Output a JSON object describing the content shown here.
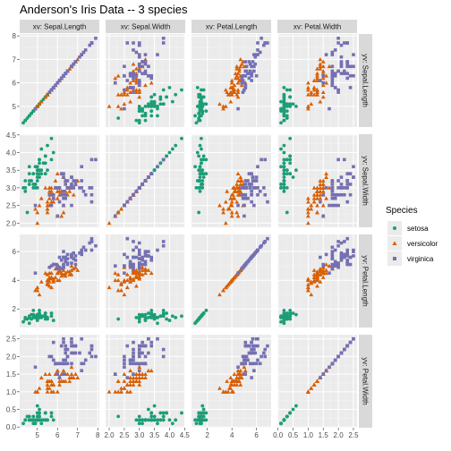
{
  "chart_data": {
    "type": "scatter",
    "title": "Anderson's Iris Data -- 3 species",
    "layout": "scatterplot-matrix",
    "grid": true,
    "variables": [
      "Sepal.Length",
      "Sepal.Width",
      "Petal.Length",
      "Petal.Width"
    ],
    "col_strips": [
      "xv: Sepal.Length",
      "xv: Sepal.Width",
      "xv: Petal.Length",
      "xv: Petal.Width"
    ],
    "row_strips": [
      "yv: Sepal.Length",
      "yv: Sepal.Width",
      "yv: Petal.Length",
      "yv: Petal.Width"
    ],
    "ranges": {
      "Sepal.Length": [
        4.3,
        7.9
      ],
      "Sepal.Width": [
        2.0,
        4.4
      ],
      "Petal.Length": [
        1.0,
        6.9
      ],
      "Petal.Width": [
        0.1,
        2.5
      ]
    },
    "ticks": {
      "Sepal.Length": [
        5,
        6,
        7,
        8
      ],
      "Sepal.Width": [
        2.0,
        2.5,
        3.0,
        3.5,
        4.0,
        4.5
      ],
      "Petal.Length": [
        2,
        4,
        6
      ],
      "Petal.Width": [
        0.0,
        0.5,
        1.0,
        1.5,
        2.0,
        2.5
      ]
    },
    "tick_labels": {
      "Sepal.Length": [
        "5",
        "6",
        "7",
        "8"
      ],
      "Sepal.Width": [
        "2.0",
        "2.5",
        "3.0",
        "3.5",
        "4.0",
        "4.5"
      ],
      "Petal.Length": [
        "2",
        "4",
        "6"
      ],
      "Petal.Width": [
        "0.0",
        "0.5",
        "1.0",
        "1.5",
        "2.0",
        "2.5"
      ]
    },
    "legend": {
      "title": "Species",
      "position": "right"
    },
    "series": [
      {
        "name": "setosa",
        "shape": "circle",
        "color": "#1B9E77",
        "points": [
          [
            5.1,
            3.5,
            1.4,
            0.2
          ],
          [
            4.9,
            3.0,
            1.4,
            0.2
          ],
          [
            4.7,
            3.2,
            1.3,
            0.2
          ],
          [
            4.6,
            3.1,
            1.5,
            0.2
          ],
          [
            5.0,
            3.6,
            1.4,
            0.2
          ],
          [
            5.4,
            3.9,
            1.7,
            0.4
          ],
          [
            4.6,
            3.4,
            1.4,
            0.3
          ],
          [
            5.0,
            3.4,
            1.5,
            0.2
          ],
          [
            4.4,
            2.9,
            1.4,
            0.2
          ],
          [
            4.9,
            3.1,
            1.5,
            0.1
          ],
          [
            5.4,
            3.7,
            1.5,
            0.2
          ],
          [
            4.8,
            3.4,
            1.6,
            0.2
          ],
          [
            4.8,
            3.0,
            1.4,
            0.1
          ],
          [
            4.3,
            3.0,
            1.1,
            0.1
          ],
          [
            5.8,
            4.0,
            1.2,
            0.2
          ],
          [
            5.7,
            4.4,
            1.5,
            0.4
          ],
          [
            5.4,
            3.9,
            1.3,
            0.4
          ],
          [
            5.1,
            3.5,
            1.4,
            0.3
          ],
          [
            5.7,
            3.8,
            1.7,
            0.3
          ],
          [
            5.1,
            3.8,
            1.5,
            0.3
          ],
          [
            5.4,
            3.4,
            1.7,
            0.2
          ],
          [
            5.1,
            3.7,
            1.5,
            0.4
          ],
          [
            4.6,
            3.6,
            1.0,
            0.2
          ],
          [
            5.1,
            3.3,
            1.7,
            0.5
          ],
          [
            4.8,
            3.4,
            1.9,
            0.2
          ],
          [
            5.0,
            3.0,
            1.6,
            0.2
          ],
          [
            5.0,
            3.4,
            1.6,
            0.4
          ],
          [
            5.2,
            3.5,
            1.5,
            0.2
          ],
          [
            5.2,
            3.4,
            1.4,
            0.2
          ],
          [
            4.7,
            3.2,
            1.6,
            0.2
          ],
          [
            4.8,
            3.1,
            1.6,
            0.2
          ],
          [
            5.4,
            3.4,
            1.5,
            0.4
          ],
          [
            5.2,
            4.1,
            1.5,
            0.1
          ],
          [
            5.5,
            4.2,
            1.4,
            0.2
          ],
          [
            4.9,
            3.1,
            1.5,
            0.2
          ],
          [
            5.0,
            3.2,
            1.2,
            0.2
          ],
          [
            5.5,
            3.5,
            1.3,
            0.2
          ],
          [
            4.9,
            3.6,
            1.4,
            0.1
          ],
          [
            4.4,
            3.0,
            1.3,
            0.2
          ],
          [
            5.1,
            3.4,
            1.5,
            0.2
          ],
          [
            5.0,
            3.5,
            1.3,
            0.3
          ],
          [
            4.5,
            2.3,
            1.3,
            0.3
          ],
          [
            4.4,
            3.2,
            1.3,
            0.2
          ],
          [
            5.0,
            3.5,
            1.6,
            0.6
          ],
          [
            5.1,
            3.8,
            1.9,
            0.4
          ],
          [
            4.8,
            3.0,
            1.4,
            0.3
          ],
          [
            5.1,
            3.8,
            1.6,
            0.2
          ],
          [
            4.6,
            3.2,
            1.4,
            0.2
          ],
          [
            5.3,
            3.7,
            1.5,
            0.2
          ],
          [
            5.0,
            3.3,
            1.4,
            0.2
          ]
        ]
      },
      {
        "name": "versicolor",
        "shape": "triangle",
        "color": "#D95F02",
        "points": [
          [
            7.0,
            3.2,
            4.7,
            1.4
          ],
          [
            6.4,
            3.2,
            4.5,
            1.5
          ],
          [
            6.9,
            3.1,
            4.9,
            1.5
          ],
          [
            5.5,
            2.3,
            4.0,
            1.3
          ],
          [
            6.5,
            2.8,
            4.6,
            1.5
          ],
          [
            5.7,
            2.8,
            4.5,
            1.3
          ],
          [
            6.3,
            3.3,
            4.7,
            1.6
          ],
          [
            4.9,
            2.4,
            3.3,
            1.0
          ],
          [
            6.6,
            2.9,
            4.6,
            1.3
          ],
          [
            5.2,
            2.7,
            3.9,
            1.4
          ],
          [
            5.0,
            2.0,
            3.5,
            1.0
          ],
          [
            5.9,
            3.0,
            4.2,
            1.5
          ],
          [
            6.0,
            2.2,
            4.0,
            1.0
          ],
          [
            6.1,
            2.9,
            4.7,
            1.4
          ],
          [
            5.6,
            2.9,
            3.6,
            1.3
          ],
          [
            6.7,
            3.1,
            4.4,
            1.4
          ],
          [
            5.6,
            3.0,
            4.5,
            1.5
          ],
          [
            5.8,
            2.7,
            4.1,
            1.0
          ],
          [
            6.2,
            2.2,
            4.5,
            1.5
          ],
          [
            5.6,
            2.5,
            3.9,
            1.1
          ],
          [
            5.9,
            3.2,
            4.8,
            1.8
          ],
          [
            6.1,
            2.8,
            4.0,
            1.3
          ],
          [
            6.3,
            2.5,
            4.9,
            1.5
          ],
          [
            6.1,
            2.8,
            4.7,
            1.2
          ],
          [
            6.4,
            2.9,
            4.3,
            1.3
          ],
          [
            6.6,
            3.0,
            4.4,
            1.4
          ],
          [
            6.8,
            2.8,
            4.8,
            1.4
          ],
          [
            6.7,
            3.0,
            5.0,
            1.7
          ],
          [
            6.0,
            2.9,
            4.5,
            1.5
          ],
          [
            5.7,
            2.6,
            3.5,
            1.0
          ],
          [
            5.5,
            2.4,
            3.8,
            1.1
          ],
          [
            5.5,
            2.4,
            3.7,
            1.0
          ],
          [
            5.8,
            2.7,
            3.9,
            1.2
          ],
          [
            6.0,
            2.7,
            5.1,
            1.6
          ],
          [
            5.4,
            3.0,
            4.5,
            1.5
          ],
          [
            6.0,
            3.4,
            4.5,
            1.6
          ],
          [
            6.7,
            3.1,
            4.7,
            1.5
          ],
          [
            6.3,
            2.3,
            4.4,
            1.3
          ],
          [
            5.6,
            3.0,
            4.1,
            1.3
          ],
          [
            5.5,
            2.5,
            4.0,
            1.3
          ],
          [
            5.5,
            2.6,
            4.4,
            1.2
          ],
          [
            6.1,
            3.0,
            4.6,
            1.4
          ],
          [
            5.8,
            2.6,
            4.0,
            1.2
          ],
          [
            5.0,
            2.3,
            3.3,
            1.0
          ],
          [
            5.6,
            2.7,
            4.2,
            1.3
          ],
          [
            5.7,
            3.0,
            4.2,
            1.2
          ],
          [
            5.7,
            2.9,
            4.2,
            1.3
          ],
          [
            6.2,
            2.9,
            4.3,
            1.3
          ],
          [
            5.1,
            2.5,
            3.0,
            1.1
          ],
          [
            5.7,
            2.8,
            4.1,
            1.3
          ]
        ]
      },
      {
        "name": "virginica",
        "shape": "square",
        "color": "#7570B3",
        "points": [
          [
            6.3,
            3.3,
            6.0,
            2.5
          ],
          [
            5.8,
            2.7,
            5.1,
            1.9
          ],
          [
            7.1,
            3.0,
            5.9,
            2.1
          ],
          [
            6.3,
            2.9,
            5.6,
            1.8
          ],
          [
            6.5,
            3.0,
            5.8,
            2.2
          ],
          [
            7.6,
            3.0,
            6.6,
            2.1
          ],
          [
            4.9,
            2.5,
            4.5,
            1.7
          ],
          [
            7.3,
            2.9,
            6.3,
            1.8
          ],
          [
            6.7,
            2.5,
            5.8,
            1.8
          ],
          [
            7.2,
            3.6,
            6.1,
            2.5
          ],
          [
            6.5,
            3.2,
            5.1,
            2.0
          ],
          [
            6.4,
            2.7,
            5.3,
            1.9
          ],
          [
            6.8,
            3.0,
            5.5,
            2.1
          ],
          [
            5.7,
            2.5,
            5.0,
            2.0
          ],
          [
            5.8,
            2.8,
            5.1,
            2.4
          ],
          [
            6.4,
            3.2,
            5.3,
            2.3
          ],
          [
            6.5,
            3.0,
            5.5,
            1.8
          ],
          [
            7.7,
            3.8,
            6.7,
            2.2
          ],
          [
            7.7,
            2.6,
            6.9,
            2.3
          ],
          [
            6.0,
            2.2,
            5.0,
            1.5
          ],
          [
            6.9,
            3.2,
            5.7,
            2.3
          ],
          [
            5.6,
            2.8,
            4.9,
            2.0
          ],
          [
            7.7,
            2.8,
            6.7,
            2.0
          ],
          [
            6.3,
            2.7,
            4.9,
            1.8
          ],
          [
            6.7,
            3.3,
            5.7,
            2.1
          ],
          [
            7.2,
            3.2,
            6.0,
            1.8
          ],
          [
            6.2,
            2.8,
            4.8,
            1.8
          ],
          [
            6.1,
            3.0,
            4.9,
            1.8
          ],
          [
            6.4,
            2.8,
            5.6,
            2.1
          ],
          [
            7.2,
            3.0,
            5.8,
            1.6
          ],
          [
            7.4,
            2.8,
            6.1,
            1.9
          ],
          [
            7.9,
            3.8,
            6.4,
            2.0
          ],
          [
            6.4,
            2.8,
            5.6,
            2.2
          ],
          [
            6.3,
            2.8,
            5.1,
            1.5
          ],
          [
            6.1,
            2.6,
            5.6,
            1.4
          ],
          [
            7.7,
            3.0,
            6.1,
            2.3
          ],
          [
            6.3,
            3.4,
            5.6,
            2.4
          ],
          [
            6.4,
            3.1,
            5.5,
            1.8
          ],
          [
            6.0,
            3.0,
            4.8,
            1.8
          ],
          [
            6.9,
            3.1,
            5.4,
            2.1
          ],
          [
            6.7,
            3.1,
            5.6,
            2.4
          ],
          [
            6.9,
            3.1,
            5.1,
            2.3
          ],
          [
            5.8,
            2.7,
            5.1,
            1.9
          ],
          [
            6.8,
            3.2,
            5.9,
            2.3
          ],
          [
            6.7,
            3.3,
            5.7,
            2.5
          ],
          [
            6.7,
            3.0,
            5.2,
            2.3
          ],
          [
            6.3,
            2.5,
            5.0,
            1.9
          ],
          [
            6.5,
            3.0,
            5.2,
            2.0
          ],
          [
            6.2,
            3.4,
            5.4,
            2.3
          ],
          [
            5.9,
            3.0,
            5.1,
            1.8
          ]
        ]
      }
    ]
  }
}
